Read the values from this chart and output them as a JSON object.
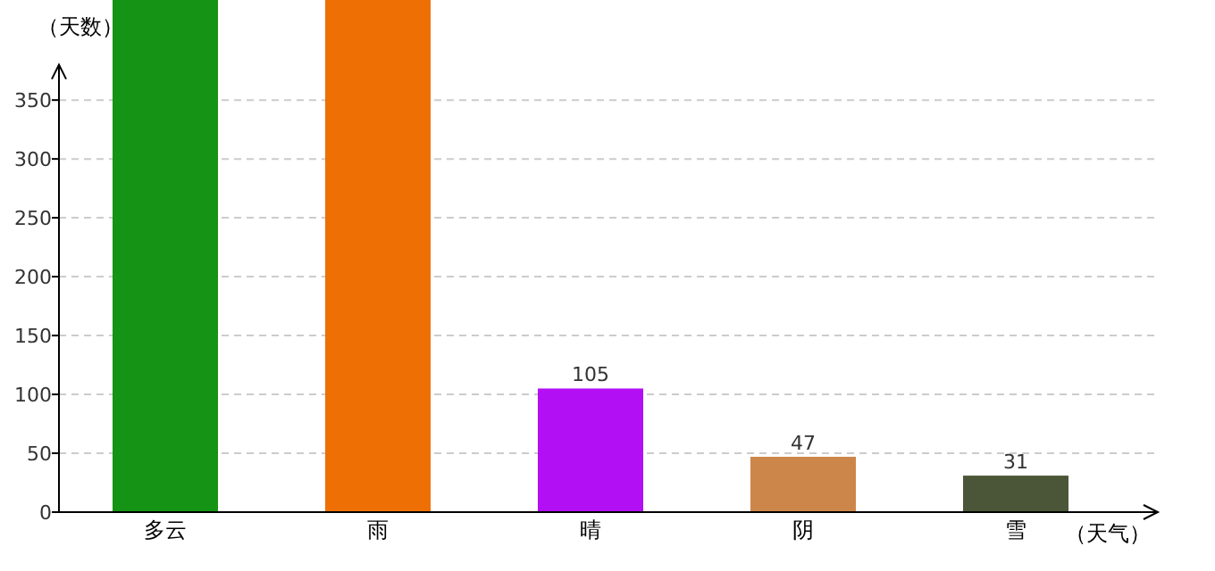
{
  "chart_data": {
    "type": "bar",
    "categories": [
      "多云",
      "雨",
      "晴",
      "阴",
      "雪"
    ],
    "values": [
      435,
      435,
      105,
      47,
      31
    ],
    "colors": [
      "#149314",
      "#ee6f04",
      "#b20ff5",
      "#cd8649",
      "#4b5638"
    ],
    "value_labels": [
      null,
      null,
      "105",
      "47",
      "31"
    ],
    "xlabel": "（天气）",
    "ylabel": "（天数）",
    "ylim": [
      0,
      435
    ],
    "yticks": [
      0,
      50,
      100,
      150,
      200,
      250,
      300,
      350
    ],
    "grid": "y"
  }
}
